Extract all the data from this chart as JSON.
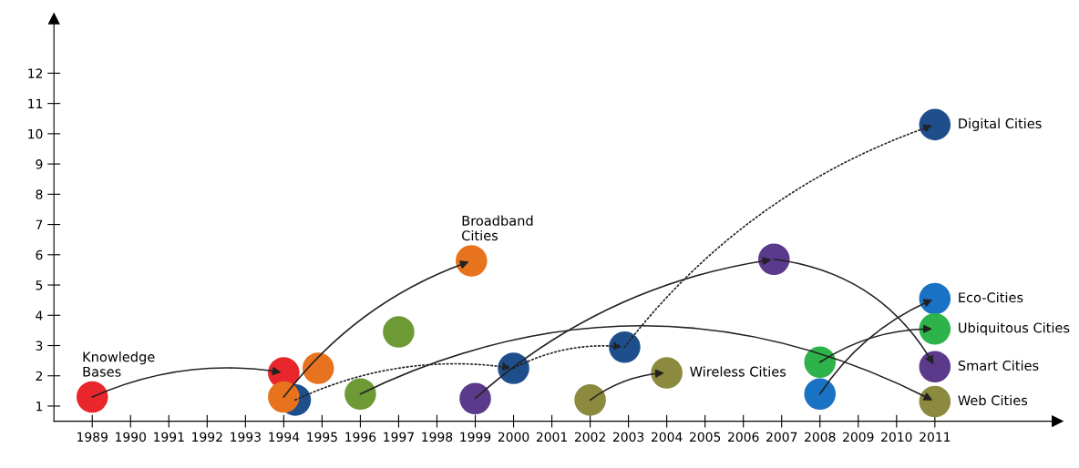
{
  "chart_data": {
    "type": "scatter",
    "xlim": [
      1988,
      2014.2
    ],
    "ylim": [
      0.5,
      13.8
    ],
    "xticks": [
      1989,
      1990,
      1991,
      1992,
      1993,
      1994,
      1995,
      1996,
      1997,
      1998,
      1999,
      2000,
      2001,
      2002,
      2003,
      2004,
      2005,
      2006,
      2007,
      2008,
      2009,
      2010,
      2011
    ],
    "yticks": [
      1,
      2,
      3,
      4,
      5,
      6,
      7,
      8,
      9,
      10,
      11,
      12
    ],
    "grid": false,
    "legend": false,
    "series": [
      {
        "line_style": "solid",
        "x": [
          1989,
          1994
        ],
        "values": [
          1.3,
          2.1
        ],
        "colors": [
          "#e8262b",
          "#e8262b"
        ]
      },
      {
        "line_style": "dotted",
        "x": [
          1994.3,
          2000,
          2002.9,
          2011
        ],
        "values": [
          1.2,
          2.25,
          2.95,
          10.3
        ],
        "colors": [
          "#1f4e8c",
          "#1f4e8c",
          "#1f4e8c",
          "#1f4e8c"
        ]
      },
      {
        "line_style": "solid",
        "x": [
          1994,
          1998.9
        ],
        "values": [
          1.3,
          5.8
        ],
        "colors": [
          "#e8731f",
          "#e8731f"
        ]
      },
      {
        "line_style": "solid",
        "x": [
          1996,
          2011
        ],
        "values": [
          1.4,
          1.15
        ],
        "colors": [
          "#6e9a35",
          "#8c8a3e"
        ]
      },
      {
        "line_style": "solid",
        "x": [
          1999,
          2006.8,
          2011
        ],
        "values": [
          1.25,
          5.85,
          2.3
        ],
        "colors": [
          "#5b3a8c",
          "#5b3a8c",
          "#5b3a8c"
        ]
      },
      {
        "line_style": "solid",
        "x": [
          2002,
          2004
        ],
        "values": [
          1.2,
          2.1
        ],
        "colors": [
          "#8c8a3e",
          "#8c8a3e"
        ]
      },
      {
        "line_style": "solid",
        "x": [
          2008,
          2011
        ],
        "values": [
          1.4,
          4.55
        ],
        "colors": [
          "#1a72c4",
          "#1a72c4"
        ]
      },
      {
        "line_style": "solid",
        "x": [
          2008,
          2011
        ],
        "values": [
          2.45,
          3.55
        ],
        "colors": [
          "#2db34a",
          "#2db34a"
        ]
      },
      {
        "x": [
          1994.9,
          1997
        ],
        "values": [
          2.25,
          3.45
        ],
        "colors": [
          "#e8731f",
          "#6e9a35"
        ]
      }
    ],
    "annotations": [
      {
        "text": "Knowledge\nBases",
        "x": 1989,
        "y": 1.3
      },
      {
        "text": "Broadband\nCities",
        "x": 1998.9,
        "y": 5.8
      },
      {
        "text": "Digital Cities",
        "x": 2011,
        "y": 10.3
      },
      {
        "text": "Wireless Cities",
        "x": 2004,
        "y": 2.1
      },
      {
        "text": "Eco-Cities",
        "x": 2011,
        "y": 4.55
      },
      {
        "text": "Ubiquitous Cities",
        "x": 2011,
        "y": 3.55
      },
      {
        "text": "Smart Cities",
        "x": 2011,
        "y": 2.3
      },
      {
        "text": "Web Cities",
        "x": 2011,
        "y": 1.15
      }
    ]
  }
}
